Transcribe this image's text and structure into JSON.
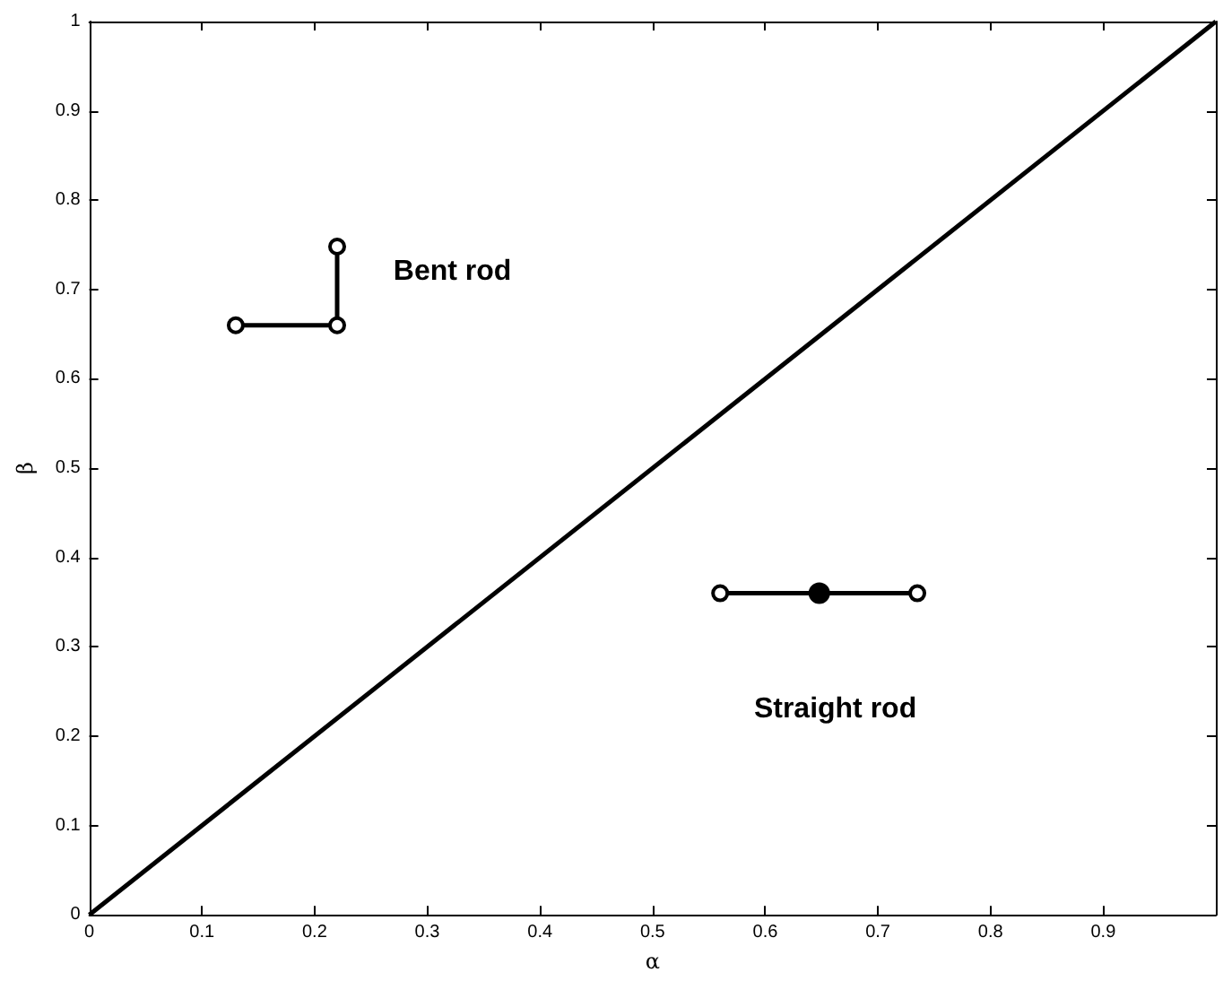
{
  "chart_data": {
    "type": "line",
    "xlabel": "α",
    "ylabel": "β",
    "x": [
      0,
      1
    ],
    "series": [
      {
        "color": "#000000",
        "values": [
          0,
          1
        ]
      }
    ],
    "xlim": [
      0,
      1
    ],
    "ylim": [
      0,
      1
    ],
    "xticks": [
      0,
      0.1,
      0.2,
      0.3,
      0.4,
      0.5,
      0.6,
      0.7,
      0.8,
      0.9,
      {
        "value": 1,
        "label": null
      }
    ],
    "yticks": [
      0,
      0.1,
      0.2,
      0.3,
      0.4,
      0.5,
      0.6,
      0.7,
      0.8,
      0.9,
      1
    ],
    "annotations": [
      "Bent rod",
      "Straight rod"
    ],
    "grid": false,
    "marker": "none",
    "line_style": "solid"
  }
}
